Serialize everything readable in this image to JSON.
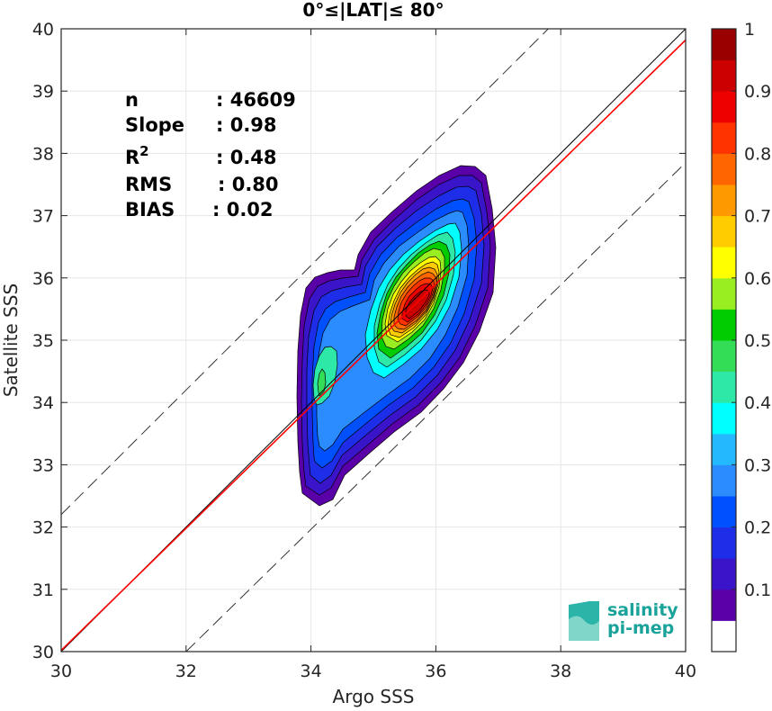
{
  "chart_data": {
    "type": "contour",
    "title": "0°≤|LAT|≤ 80°",
    "xlabel": "Argo SSS",
    "ylabel": "Satellite SSS",
    "xlim": [
      30,
      40
    ],
    "ylim": [
      30,
      40
    ],
    "xticks": [
      "30",
      "32",
      "34",
      "36",
      "38",
      "40"
    ],
    "yticks": [
      "30",
      "31",
      "32",
      "33",
      "34",
      "35",
      "36",
      "37",
      "38",
      "39",
      "40"
    ],
    "grid": true,
    "stats": [
      {
        "label": "n",
        "value": ": 46609"
      },
      {
        "label": "Slope",
        "value": ": 0.98"
      },
      {
        "label": "R",
        "sup": "2",
        "value": ": 0.48"
      },
      {
        "label": "RMS",
        "value": ": 0.80"
      },
      {
        "label": "BIAS",
        "value": ": 0.02"
      }
    ],
    "lines": {
      "one_to_one": {
        "x": [
          30,
          40
        ],
        "y": [
          30,
          40
        ],
        "color": "#000000"
      },
      "fit": {
        "x": [
          30,
          40
        ],
        "y": [
          30.02,
          39.82
        ],
        "color": "#ff0000"
      },
      "upper_bound": {
        "x": [
          30,
          40
        ],
        "y": [
          32.2,
          42.2
        ],
        "style": "dashed"
      },
      "lower_bound": {
        "x": [
          32,
          40
        ],
        "y": [
          30,
          37.85
        ],
        "style": "dashed"
      }
    },
    "density_peak": {
      "x": 35.6,
      "y": 35.7,
      "value": 1.0
    },
    "secondary_peak": {
      "x": 34.1,
      "y": 34.2,
      "value": 0.45
    },
    "colorbar": {
      "range": [
        0,
        1
      ],
      "ticks": [
        "0.1",
        "0.2",
        "0.3",
        "0.4",
        "0.5",
        "0.6",
        "0.7",
        "0.8",
        "0.9",
        "1"
      ],
      "colors": [
        "#ffffff",
        "#5a00a8",
        "#3a14c8",
        "#1e2ee8",
        "#0050ff",
        "#2a8cff",
        "#24b8ff",
        "#00ffff",
        "#2ee8a8",
        "#33dd55",
        "#00cc00",
        "#99ee22",
        "#ffff00",
        "#ffcc00",
        "#ff9900",
        "#ff6600",
        "#ff3300",
        "#ee0000",
        "#cc0000",
        "#990000"
      ]
    }
  },
  "logo": {
    "line1": "salinity",
    "line2": "pi-mep"
  }
}
